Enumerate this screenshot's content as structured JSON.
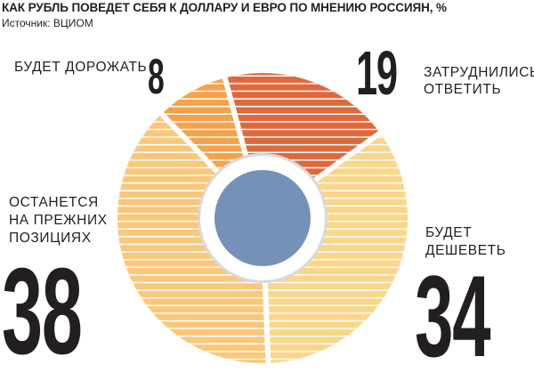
{
  "header": {
    "title": "КАК РУБЛЬ ПОВЕДЕТ СЕБЯ К ДОЛЛАРУ И ЕВРО ПО МНЕНИЮ РОССИЯН, %",
    "source": "Источник: ВЦИОМ"
  },
  "labels": {
    "up_line1": "БУДЕТ ДОРОЖАТЬ",
    "hard_line1": "ЗАТРУДНИЛИСЬ",
    "hard_line2": "ОТВЕТИТЬ",
    "down_line1": "БУДЕТ",
    "down_line2": "ДЕШЕВЕТЬ",
    "same_line1": "ОСТАНЕТСЯ",
    "same_line2": "НА ПРЕЖНИХ",
    "same_line3": "ПОЗИЦИЯХ"
  },
  "colors": {
    "up": "#f5a24a",
    "hard": "#de6a3c",
    "down": "#fbd68a",
    "same": "#fbc77a",
    "center": "#7591b8",
    "hole_ring": "#d9d9d9",
    "stripe": "#ffffff"
  },
  "chart_data": {
    "type": "pie",
    "title": "КАК РУБЛЬ ПОВЕДЕТ СЕБЯ К ДОЛЛАРУ И ЕВРО ПО МНЕНИЮ РОССИЯН, %",
    "unit": "%",
    "slices": [
      {
        "label": "ЗАТРУДНИЛИСЬ ОТВЕТИТЬ",
        "value": 19
      },
      {
        "label": "БУДЕТ ДЕШЕВЕТЬ",
        "value": 34
      },
      {
        "label": "ОСТАНЕТСЯ НА ПРЕЖНИХ ПОЗИЦИЯХ",
        "value": 38
      },
      {
        "label": "БУДЕТ ДОРОЖАТЬ",
        "value": 8
      }
    ]
  }
}
